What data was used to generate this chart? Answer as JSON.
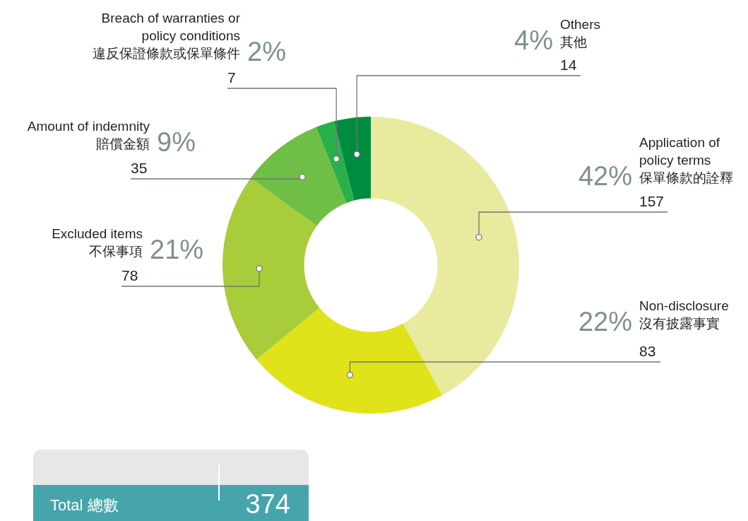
{
  "chart_data": {
    "type": "donut",
    "categories": [
      "Application of\npolicy terms\n保單條款的詮釋",
      "Non-disclosure\n沒有披露事實",
      "Excluded items\n不保事項",
      "Amount of indemnity\n賠償金額",
      "Breach of warranties or\npolicy conditions\n違反保證條款或保單條件",
      "Others\n其他"
    ],
    "values": [
      42,
      22,
      21,
      9,
      2,
      4
    ],
    "colors": [
      "#e8eb9e",
      "#e0e21a",
      "#a8cc3a",
      "#6fbe45",
      "#2ab04a",
      "#008c3e"
    ],
    "value_labels": [
      "42%",
      "22%",
      "21%",
      "9%",
      "2%",
      "4%"
    ],
    "annotations": [
      "Total 總數",
      "374",
      "157",
      "83",
      "78",
      "35",
      "7",
      "14"
    ]
  }
}
